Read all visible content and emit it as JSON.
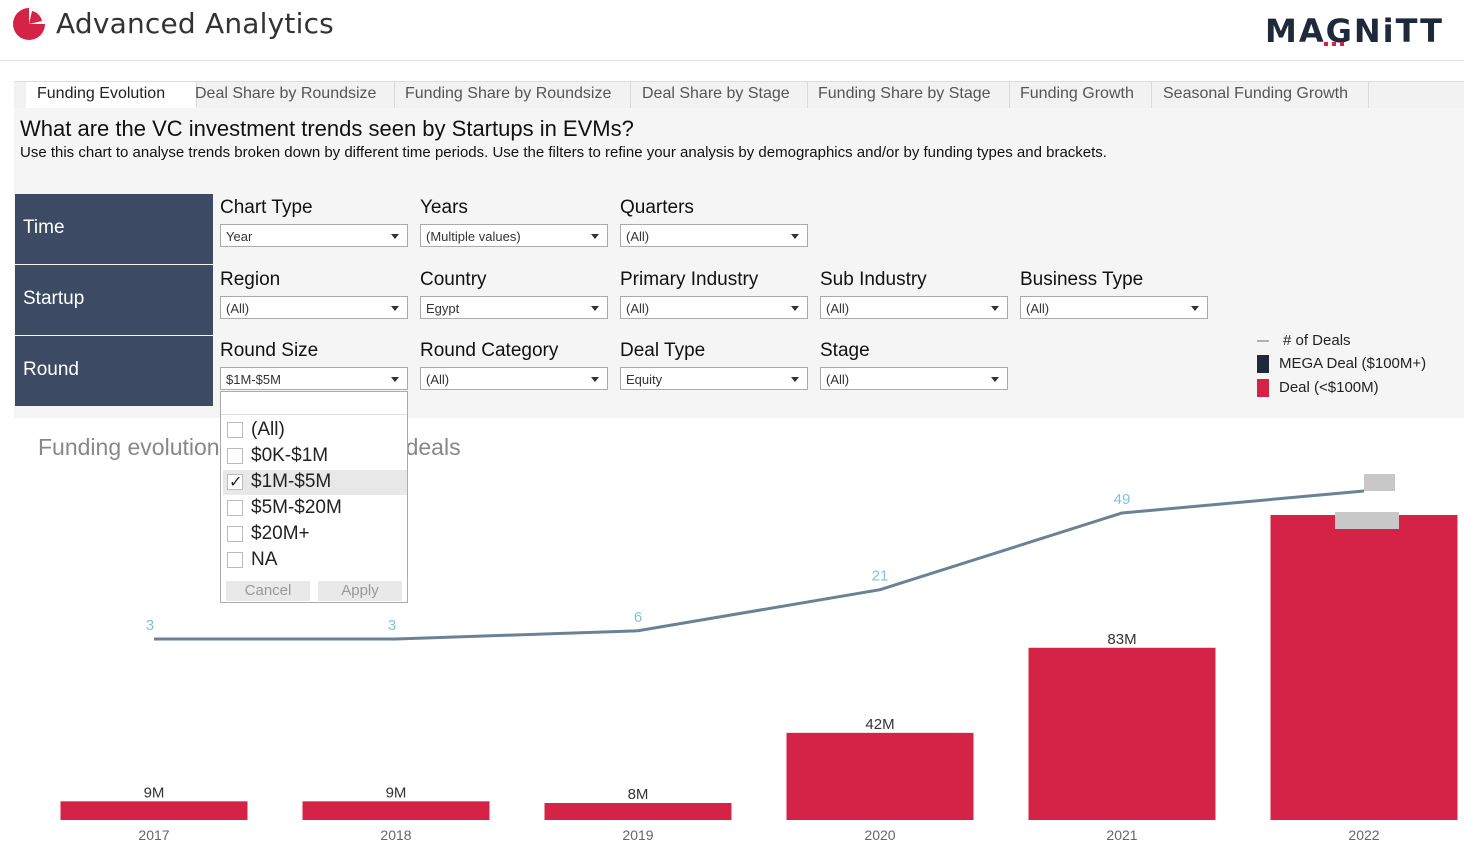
{
  "app": {
    "title": "Advanced Analytics",
    "brand": "MAGNiTT",
    "logo_icon": "pie-logo-icon"
  },
  "tabs": [
    {
      "label": "Funding Evolution",
      "active": true
    },
    {
      "label": "Deal Share by Roundsize"
    },
    {
      "label": "Funding Share by Roundsize"
    },
    {
      "label": "Deal Share by Stage"
    },
    {
      "label": "Funding Share by Stage"
    },
    {
      "label": "Funding Growth"
    },
    {
      "label": "Seasonal Funding Growth"
    }
  ],
  "question": {
    "title": "What are the VC investment trends seen by Startups in EVMs?",
    "subtitle": "Use this chart to analyse trends broken down by different time periods. Use the filters to refine your analysis by demographics and/or by funding types and brackets."
  },
  "sections": {
    "time": "Time",
    "startup": "Startup",
    "round": "Round"
  },
  "filters": {
    "chart_type": {
      "label": "Chart Type",
      "value": "Year"
    },
    "years": {
      "label": "Years",
      "value": "(Multiple values)"
    },
    "quarters": {
      "label": "Quarters",
      "value": "(All)"
    },
    "region": {
      "label": "Region",
      "value": "(All)"
    },
    "country": {
      "label": "Country",
      "value": "Egypt"
    },
    "primary_industry": {
      "label": "Primary Industry",
      "value": "(All)"
    },
    "sub_industry": {
      "label": "Sub Industry",
      "value": "(All)"
    },
    "business_type": {
      "label": "Business Type",
      "value": "(All)"
    },
    "round_size": {
      "label": "Round Size",
      "value": "$1M-$5M"
    },
    "round_category": {
      "label": "Round Category",
      "value": "(All)"
    },
    "deal_type": {
      "label": "Deal Type",
      "value": "Equity"
    },
    "stage": {
      "label": "Stage",
      "value": "(All)"
    }
  },
  "round_size_popup": {
    "options": [
      {
        "label": "(All)",
        "checked": false
      },
      {
        "label": "$0K-$1M",
        "checked": false
      },
      {
        "label": "$1M-$5M",
        "checked": true
      },
      {
        "label": "$5M-$20M",
        "checked": false
      },
      {
        "label": "$20M+",
        "checked": false
      },
      {
        "label": "NA",
        "checked": false
      }
    ],
    "cancel_label": "Cancel",
    "apply_label": "Apply"
  },
  "legend": {
    "items": [
      {
        "label": "# of Deals",
        "color": "#6b8196",
        "shape": "line"
      },
      {
        "label": "MEGA Deal ($100M+)",
        "color": "#1e2a3b",
        "shape": "square"
      },
      {
        "label": "Deal (<$100M)",
        "color": "#d42346",
        "shape": "square"
      }
    ]
  },
  "chart": {
    "title_visible_left": "Funding evolution",
    "title_visible_right": "deals"
  },
  "chart_data": {
    "type": "bar",
    "categories": [
      "2017",
      "2018",
      "2019",
      "2020",
      "2021",
      "2022"
    ],
    "series": [
      {
        "name": "Deal (<$100M)",
        "type": "bar",
        "values": [
          9,
          9,
          8,
          42,
          83,
          147
        ],
        "labels": [
          "9M",
          "9M",
          "8M",
          "42M",
          "83M",
          ""
        ],
        "color": "#d42346"
      },
      {
        "name": "# of Deals",
        "type": "line",
        "values": [
          3,
          3,
          6,
          21,
          49,
          null
        ],
        "labels": [
          "3",
          "3",
          "6",
          "21",
          "49",
          ""
        ],
        "color": "#6b8196"
      }
    ],
    "bar_color": "#d42346",
    "line_color": "#6b8196",
    "line_label_color": "#7ec3e0",
    "grid": false
  }
}
